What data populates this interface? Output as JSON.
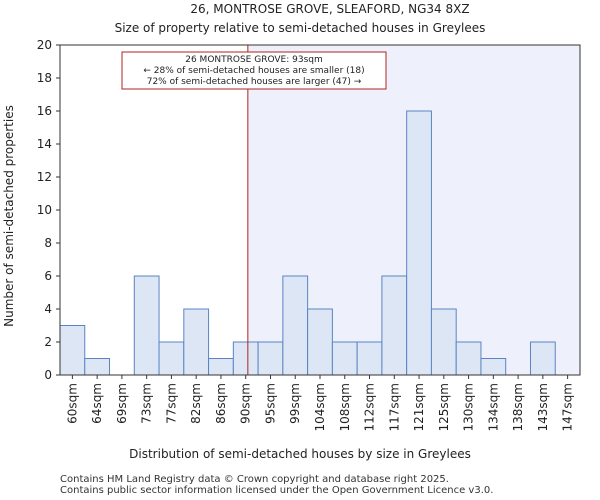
{
  "chart_data": {
    "type": "bar",
    "title": "26, MONTROSE GROVE, SLEAFORD, NG34 8XZ",
    "subtitle": "Size of property relative to semi-detached houses in Greylees",
    "xlabel": "Distribution of semi-detached houses by size in Greylees",
    "ylabel": "Number of semi-detached properties",
    "categories": [
      "60sqm",
      "64sqm",
      "69sqm",
      "73sqm",
      "77sqm",
      "82sqm",
      "86sqm",
      "90sqm",
      "95sqm",
      "99sqm",
      "104sqm",
      "108sqm",
      "112sqm",
      "117sqm",
      "121sqm",
      "125sqm",
      "130sqm",
      "134sqm",
      "138sqm",
      "143sqm",
      "147sqm"
    ],
    "values": [
      3,
      1,
      0,
      6,
      2,
      4,
      1,
      2,
      2,
      6,
      4,
      2,
      2,
      6,
      16,
      4,
      2,
      1,
      0,
      2,
      0
    ],
    "ylim": [
      0,
      20
    ],
    "yticks": [
      0,
      2,
      4,
      6,
      8,
      10,
      12,
      14,
      16,
      18,
      20
    ],
    "grid": false,
    "colors": {
      "bar_fill": "#dce6f5",
      "bar_edge": "#5b84c4",
      "marker": "#b22222",
      "highlight": "#eef1fb"
    },
    "marker": {
      "value_sqm": 93
    },
    "annotation": {
      "line1": "26 MONTROSE GROVE: 93sqm",
      "line2": "← 28% of semi-detached houses are smaller (18)",
      "line3": "72% of semi-detached houses are larger (47) →"
    }
  },
  "footer": {
    "line1": "Contains HM Land Registry data © Crown copyright and database right 2025.",
    "line2": "Contains public sector information licensed under the Open Government Licence v3.0."
  }
}
